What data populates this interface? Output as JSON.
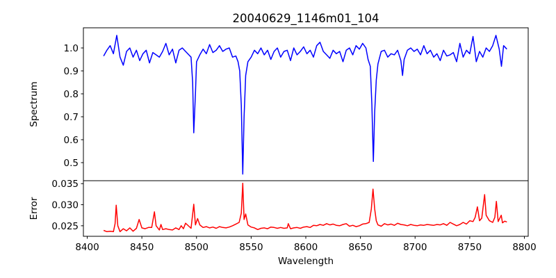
{
  "chart_data": [
    {
      "type": "line",
      "title": "20040629_1146m01_104",
      "xlabel": "Wavelength",
      "ylabel": "Spectrum",
      "color": "#0000ff",
      "xlim": [
        8396.5,
        8803.5
      ],
      "ylim": [
        0.4212,
        1.0879
      ],
      "yticks": [
        0.5,
        0.6,
        0.7,
        0.8,
        0.9,
        1.0
      ],
      "ytick_labels": [
        "0.5",
        "0.6",
        "0.7",
        "0.8",
        "0.9",
        "1.0"
      ],
      "grid": false,
      "points": [
        [
          8415,
          0.965
        ],
        [
          8418,
          0.99
        ],
        [
          8421,
          1.01
        ],
        [
          8424,
          0.975
        ],
        [
          8427,
          1.055
        ],
        [
          8430,
          0.96
        ],
        [
          8433,
          0.925
        ],
        [
          8436,
          0.985
        ],
        [
          8439,
          1.0
        ],
        [
          8442,
          0.96
        ],
        [
          8445,
          0.99
        ],
        [
          8448,
          0.945
        ],
        [
          8451,
          0.975
        ],
        [
          8454,
          0.99
        ],
        [
          8457,
          0.935
        ],
        [
          8460,
          0.98
        ],
        [
          8463,
          0.97
        ],
        [
          8466,
          0.96
        ],
        [
          8469,
          0.985
        ],
        [
          8472,
          1.02
        ],
        [
          8475,
          0.97
        ],
        [
          8478,
          0.995
        ],
        [
          8481,
          0.935
        ],
        [
          8484,
          0.99
        ],
        [
          8487,
          1.0
        ],
        [
          8490,
          0.985
        ],
        [
          8493,
          0.97
        ],
        [
          8495,
          0.96
        ],
        [
          8496.5,
          0.85
        ],
        [
          8497.5,
          0.63
        ],
        [
          8499,
          0.8
        ],
        [
          8500,
          0.94
        ],
        [
          8503,
          0.97
        ],
        [
          8506,
          0.995
        ],
        [
          8509,
          0.975
        ],
        [
          8512,
          1.015
        ],
        [
          8515,
          0.98
        ],
        [
          8518,
          0.99
        ],
        [
          8521,
          1.01
        ],
        [
          8524,
          0.985
        ],
        [
          8527,
          0.995
        ],
        [
          8530,
          1.0
        ],
        [
          8533,
          0.96
        ],
        [
          8536,
          0.965
        ],
        [
          8538,
          0.94
        ],
        [
          8539.5,
          0.9
        ],
        [
          8541,
          0.75
        ],
        [
          8542.3,
          0.45
        ],
        [
          8543.5,
          0.7
        ],
        [
          8545,
          0.88
        ],
        [
          8547,
          0.94
        ],
        [
          8550,
          0.96
        ],
        [
          8553,
          0.99
        ],
        [
          8556,
          0.975
        ],
        [
          8559,
          1.0
        ],
        [
          8562,
          0.97
        ],
        [
          8565,
          0.99
        ],
        [
          8568,
          0.95
        ],
        [
          8571,
          0.985
        ],
        [
          8574,
          1.0
        ],
        [
          8577,
          0.96
        ],
        [
          8580,
          0.985
        ],
        [
          8583,
          0.99
        ],
        [
          8586,
          0.945
        ],
        [
          8589,
          1.0
        ],
        [
          8592,
          0.97
        ],
        [
          8595,
          0.985
        ],
        [
          8598,
          1.005
        ],
        [
          8601,
          0.975
        ],
        [
          8604,
          0.99
        ],
        [
          8607,
          0.96
        ],
        [
          8610,
          1.01
        ],
        [
          8613,
          1.025
        ],
        [
          8616,
          0.985
        ],
        [
          8619,
          0.97
        ],
        [
          8622,
          0.955
        ],
        [
          8625,
          0.99
        ],
        [
          8628,
          0.975
        ],
        [
          8631,
          0.985
        ],
        [
          8634,
          0.94
        ],
        [
          8637,
          0.99
        ],
        [
          8640,
          1.0
        ],
        [
          8643,
          0.97
        ],
        [
          8646,
          1.01
        ],
        [
          8649,
          0.995
        ],
        [
          8652,
          1.02
        ],
        [
          8655,
          1.0
        ],
        [
          8657,
          0.95
        ],
        [
          8659,
          0.92
        ],
        [
          8660.5,
          0.75
        ],
        [
          8661.8,
          0.505
        ],
        [
          8663,
          0.72
        ],
        [
          8664.5,
          0.86
        ],
        [
          8666,
          0.93
        ],
        [
          8669,
          0.985
        ],
        [
          8672,
          0.99
        ],
        [
          8675,
          0.96
        ],
        [
          8678,
          0.975
        ],
        [
          8681,
          0.97
        ],
        [
          8684,
          0.99
        ],
        [
          8687,
          0.945
        ],
        [
          8688.5,
          0.88
        ],
        [
          8690,
          0.95
        ],
        [
          8693,
          0.99
        ],
        [
          8696,
          1.0
        ],
        [
          8699,
          0.985
        ],
        [
          8702,
          0.995
        ],
        [
          8705,
          0.97
        ],
        [
          8708,
          1.01
        ],
        [
          8711,
          0.975
        ],
        [
          8714,
          0.99
        ],
        [
          8717,
          0.96
        ],
        [
          8720,
          0.975
        ],
        [
          8723,
          0.945
        ],
        [
          8726,
          0.99
        ],
        [
          8729,
          0.965
        ],
        [
          8732,
          0.97
        ],
        [
          8735,
          0.98
        ],
        [
          8738,
          0.94
        ],
        [
          8741,
          1.02
        ],
        [
          8744,
          0.96
        ],
        [
          8747,
          0.99
        ],
        [
          8750,
          0.975
        ],
        [
          8753,
          1.05
        ],
        [
          8756,
          0.94
        ],
        [
          8759,
          0.985
        ],
        [
          8762,
          0.96
        ],
        [
          8765,
          1.0
        ],
        [
          8768,
          0.985
        ],
        [
          8771,
          1.01
        ],
        [
          8774,
          1.055
        ],
        [
          8777,
          0.995
        ],
        [
          8779,
          0.92
        ],
        [
          8781,
          1.01
        ],
        [
          8784,
          0.995
        ]
      ]
    },
    {
      "type": "line",
      "xlabel": "Wavelength",
      "ylabel": "Error",
      "color": "#ff0000",
      "xlim": [
        8396.5,
        8803.5
      ],
      "ylim": [
        0.0225,
        0.0357
      ],
      "yticks": [
        0.025,
        0.03,
        0.035
      ],
      "ytick_labels": [
        "0.025",
        "0.030",
        "0.035"
      ],
      "xticks": [
        8400,
        8450,
        8500,
        8550,
        8600,
        8650,
        8700,
        8750,
        8800
      ],
      "xtick_labels": [
        "8400",
        "8450",
        "8500",
        "8550",
        "8600",
        "8650",
        "8700",
        "8750",
        "8800"
      ],
      "grid": false,
      "points": [
        [
          8415,
          0.0239
        ],
        [
          8418,
          0.0236
        ],
        [
          8421,
          0.0237
        ],
        [
          8424,
          0.0236
        ],
        [
          8425.5,
          0.0255
        ],
        [
          8426.5,
          0.0299
        ],
        [
          8428,
          0.025
        ],
        [
          8430,
          0.0236
        ],
        [
          8433,
          0.0243
        ],
        [
          8436,
          0.0238
        ],
        [
          8439,
          0.0245
        ],
        [
          8442,
          0.0237
        ],
        [
          8445,
          0.0244
        ],
        [
          8447.5,
          0.0265
        ],
        [
          8450,
          0.0245
        ],
        [
          8453,
          0.0243
        ],
        [
          8456,
          0.0246
        ],
        [
          8459,
          0.0246
        ],
        [
          8461.5,
          0.0283
        ],
        [
          8463,
          0.025
        ],
        [
          8466,
          0.024
        ],
        [
          8467.5,
          0.0253
        ],
        [
          8469,
          0.0241
        ],
        [
          8472,
          0.0243
        ],
        [
          8475,
          0.0241
        ],
        [
          8478,
          0.024
        ],
        [
          8481,
          0.0245
        ],
        [
          8484,
          0.0241
        ],
        [
          8486,
          0.025
        ],
        [
          8488,
          0.0243
        ],
        [
          8490,
          0.0256
        ],
        [
          8493,
          0.0249
        ],
        [
          8495,
          0.0244
        ],
        [
          8497.5,
          0.0301
        ],
        [
          8499,
          0.0252
        ],
        [
          8501,
          0.0267
        ],
        [
          8503,
          0.0252
        ],
        [
          8506,
          0.0246
        ],
        [
          8509,
          0.0248
        ],
        [
          8512,
          0.0245
        ],
        [
          8515,
          0.0247
        ],
        [
          8518,
          0.0244
        ],
        [
          8521,
          0.0248
        ],
        [
          8524,
          0.0246
        ],
        [
          8527,
          0.0245
        ],
        [
          8530,
          0.0247
        ],
        [
          8533,
          0.025
        ],
        [
          8536,
          0.0254
        ],
        [
          8539,
          0.0258
        ],
        [
          8541,
          0.028
        ],
        [
          8542.3,
          0.0351
        ],
        [
          8543.5,
          0.0265
        ],
        [
          8545,
          0.0278
        ],
        [
          8547,
          0.0252
        ],
        [
          8550,
          0.0247
        ],
        [
          8553,
          0.0245
        ],
        [
          8556,
          0.0241
        ],
        [
          8559,
          0.0244
        ],
        [
          8562,
          0.0245
        ],
        [
          8565,
          0.0243
        ],
        [
          8568,
          0.0247
        ],
        [
          8571,
          0.0246
        ],
        [
          8574,
          0.0244
        ],
        [
          8577,
          0.0246
        ],
        [
          8580,
          0.0244
        ],
        [
          8583,
          0.0245
        ],
        [
          8584,
          0.0255
        ],
        [
          8586,
          0.0243
        ],
        [
          8589,
          0.0245
        ],
        [
          8592,
          0.0246
        ],
        [
          8595,
          0.0244
        ],
        [
          8598,
          0.0247
        ],
        [
          8601,
          0.0248
        ],
        [
          8604,
          0.0246
        ],
        [
          8607,
          0.0251
        ],
        [
          8610,
          0.025
        ],
        [
          8613,
          0.0253
        ],
        [
          8616,
          0.0251
        ],
        [
          8619,
          0.0255
        ],
        [
          8622,
          0.0252
        ],
        [
          8625,
          0.0254
        ],
        [
          8628,
          0.0251
        ],
        [
          8631,
          0.025
        ],
        [
          8634,
          0.0253
        ],
        [
          8637,
          0.0255
        ],
        [
          8640,
          0.0249
        ],
        [
          8643,
          0.0251
        ],
        [
          8646,
          0.0248
        ],
        [
          8649,
          0.025
        ],
        [
          8652,
          0.0254
        ],
        [
          8655,
          0.0255
        ],
        [
          8658,
          0.0258
        ],
        [
          8660,
          0.029
        ],
        [
          8661.5,
          0.0337
        ],
        [
          8663,
          0.029
        ],
        [
          8664.5,
          0.0262
        ],
        [
          8666,
          0.0252
        ],
        [
          8669,
          0.0249
        ],
        [
          8672,
          0.0255
        ],
        [
          8675,
          0.0252
        ],
        [
          8678,
          0.0254
        ],
        [
          8681,
          0.0251
        ],
        [
          8684,
          0.0256
        ],
        [
          8687,
          0.0253
        ],
        [
          8690,
          0.0252
        ],
        [
          8693,
          0.025
        ],
        [
          8696,
          0.0253
        ],
        [
          8699,
          0.0251
        ],
        [
          8702,
          0.025
        ],
        [
          8705,
          0.0252
        ],
        [
          8708,
          0.0251
        ],
        [
          8711,
          0.0253
        ],
        [
          8714,
          0.0252
        ],
        [
          8717,
          0.0251
        ],
        [
          8720,
          0.0253
        ],
        [
          8723,
          0.0252
        ],
        [
          8726,
          0.0255
        ],
        [
          8729,
          0.0251
        ],
        [
          8732,
          0.0258
        ],
        [
          8735,
          0.0254
        ],
        [
          8738,
          0.025
        ],
        [
          8741,
          0.0253
        ],
        [
          8744,
          0.0258
        ],
        [
          8747,
          0.0254
        ],
        [
          8750,
          0.0262
        ],
        [
          8753,
          0.026
        ],
        [
          8755,
          0.027
        ],
        [
          8757,
          0.0295
        ],
        [
          8759,
          0.0262
        ],
        [
          8761,
          0.0268
        ],
        [
          8763.6,
          0.0324
        ],
        [
          8765,
          0.0275
        ],
        [
          8768,
          0.0262
        ],
        [
          8771,
          0.0258
        ],
        [
          8773,
          0.027
        ],
        [
          8774.4,
          0.0308
        ],
        [
          8776,
          0.026
        ],
        [
          8778.8,
          0.0275
        ],
        [
          8780,
          0.0257
        ],
        [
          8782,
          0.0261
        ],
        [
          8784,
          0.0259
        ]
      ]
    }
  ]
}
